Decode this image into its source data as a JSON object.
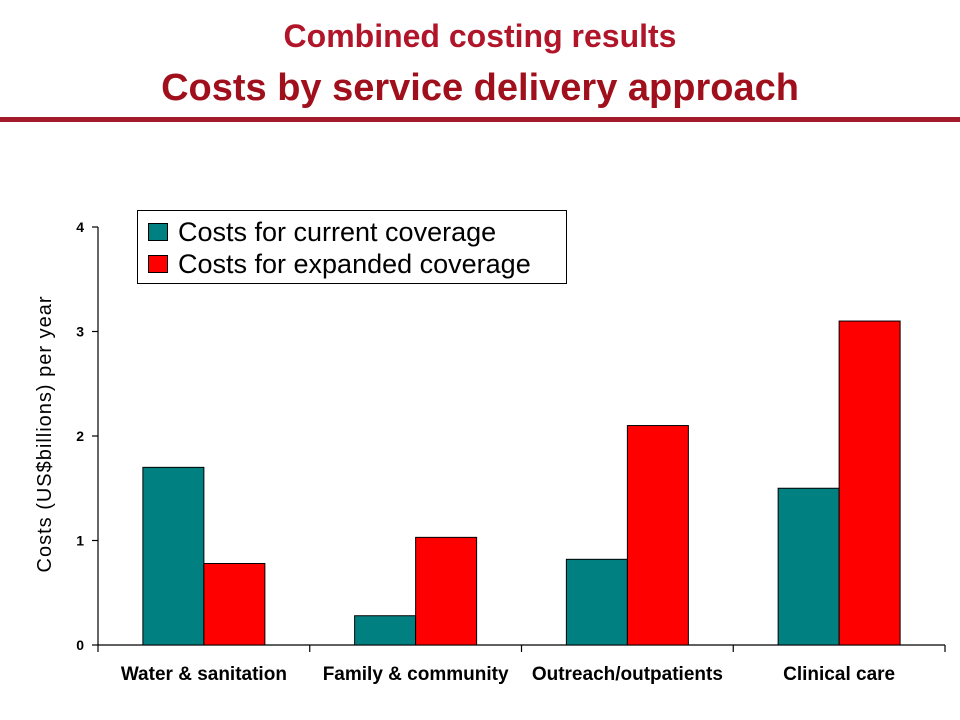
{
  "header": {
    "title": "Combined costing results",
    "subtitle": "Costs by service delivery approach"
  },
  "colors": {
    "title": "#b0152a",
    "rule": "#a31b2a",
    "current": "#008080",
    "expanded": "#ff0000"
  },
  "chart_data": {
    "type": "bar",
    "categories": [
      "Water & sanitation",
      "Family & community",
      "Outreach/outpatients",
      "Clinical care"
    ],
    "series": [
      {
        "name": "Costs for current coverage",
        "values": [
          1.7,
          0.28,
          0.82,
          1.5
        ]
      },
      {
        "name": "Costs for expanded coverage",
        "values": [
          0.78,
          1.03,
          2.1,
          3.1
        ]
      }
    ],
    "xlabel": "",
    "ylabel": "Costs (US$billions) per year",
    "ylim": [
      0,
      4
    ],
    "yticks": [
      "0",
      "1",
      "2",
      "3",
      "4"
    ],
    "grid": false,
    "legend": "top-left"
  }
}
